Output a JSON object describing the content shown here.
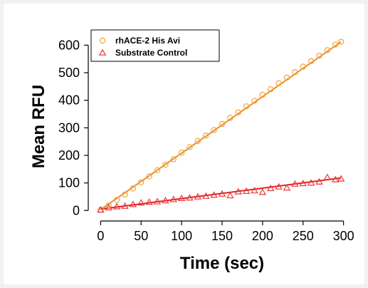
{
  "chart_data": {
    "type": "scatter",
    "xlabel": "Time (sec)",
    "ylabel": "Mean RFU",
    "xlim": [
      -10,
      310
    ],
    "ylim": [
      -20,
      650
    ],
    "xticks": [
      0,
      50,
      100,
      150,
      200,
      250,
      300
    ],
    "yticks": [
      0,
      100,
      200,
      300,
      400,
      500,
      600
    ],
    "grid": false,
    "legend_position": "top-left",
    "series": [
      {
        "name": "rhACE-2 His Avi",
        "marker": "circle",
        "color": "#f5a040",
        "line_color": "#e8922a",
        "fit": [
          [
            0,
            3
          ],
          [
            297,
            612
          ]
        ],
        "x": [
          0,
          10,
          20,
          30,
          40,
          50,
          60,
          70,
          80,
          90,
          100,
          110,
          120,
          130,
          140,
          150,
          160,
          170,
          180,
          190,
          200,
          210,
          220,
          230,
          240,
          250,
          260,
          270,
          280,
          290,
          297
        ],
        "y": [
          3,
          18,
          38,
          58,
          80,
          102,
          124,
          146,
          166,
          186,
          210,
          230,
          252,
          272,
          292,
          314,
          336,
          356,
          378,
          398,
          420,
          440,
          462,
          482,
          502,
          522,
          542,
          562,
          582,
          602,
          612
        ]
      },
      {
        "name": "Substrate Control",
        "marker": "triangle",
        "color": "#e83a3a",
        "line_color": "#e51f1f",
        "fit": [
          [
            0,
            5
          ],
          [
            297,
            118
          ]
        ],
        "x": [
          0,
          10,
          20,
          30,
          40,
          50,
          60,
          70,
          80,
          90,
          100,
          110,
          120,
          130,
          140,
          150,
          160,
          170,
          180,
          190,
          200,
          210,
          220,
          230,
          240,
          250,
          260,
          270,
          280,
          290,
          297
        ],
        "y": [
          2,
          10,
          14,
          16,
          22,
          28,
          30,
          32,
          36,
          40,
          44,
          46,
          50,
          52,
          56,
          60,
          54,
          68,
          70,
          72,
          66,
          80,
          86,
          82,
          96,
          98,
          100,
          104,
          120,
          112,
          115
        ]
      }
    ]
  }
}
